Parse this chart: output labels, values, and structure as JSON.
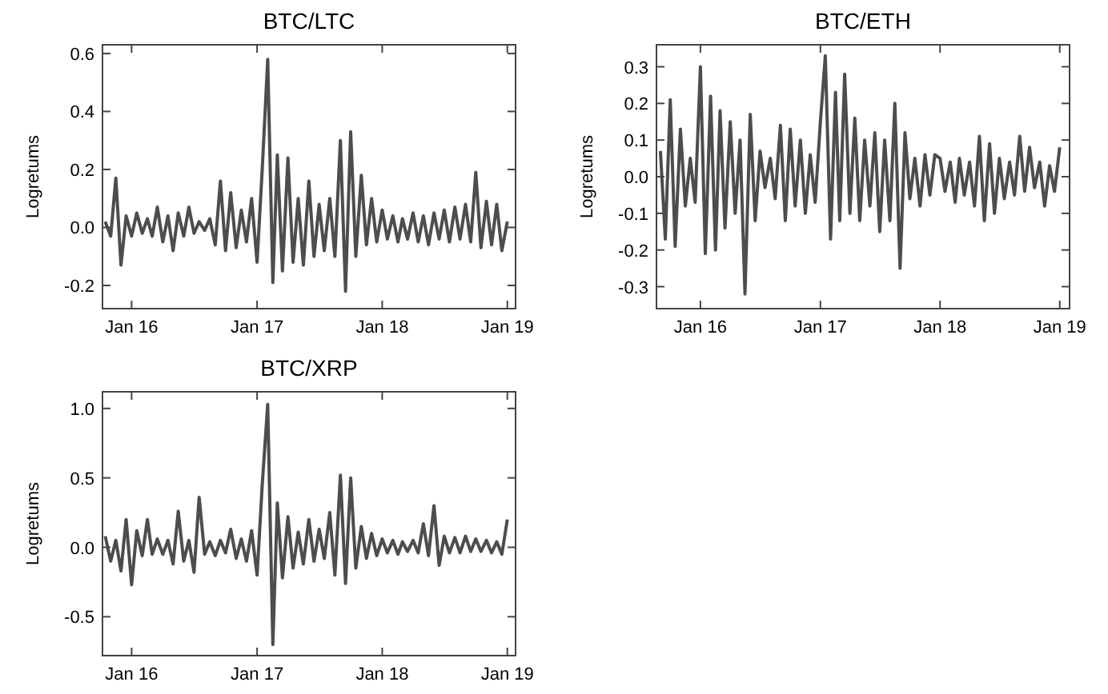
{
  "chart_data": [
    {
      "type": "line",
      "title": "BTC/LTC",
      "ylabel": "Logretums",
      "x": [
        "2015-10-16",
        "2015-11-01",
        "2015-11-16",
        "2015-12-01",
        "2015-12-16",
        "2016-01-01",
        "2016-01-16",
        "2016-02-01",
        "2016-02-16",
        "2016-03-01",
        "2016-03-16",
        "2016-04-01",
        "2016-04-16",
        "2016-05-01",
        "2016-05-16",
        "2016-06-01",
        "2016-06-16",
        "2016-07-01",
        "2016-07-16",
        "2016-08-01",
        "2016-08-16",
        "2016-09-01",
        "2016-09-16",
        "2016-10-01",
        "2016-10-16",
        "2016-11-01",
        "2016-11-16",
        "2016-12-01",
        "2016-12-16",
        "2017-01-01",
        "2017-01-16",
        "2017-02-01",
        "2017-02-16",
        "2017-03-01",
        "2017-03-16",
        "2017-04-01",
        "2017-04-16",
        "2017-05-01",
        "2017-05-16",
        "2017-06-01",
        "2017-06-16",
        "2017-07-01",
        "2017-07-16",
        "2017-08-01",
        "2017-08-16",
        "2017-09-01",
        "2017-09-16",
        "2017-10-01",
        "2017-10-16",
        "2017-11-01",
        "2017-11-16",
        "2017-12-01",
        "2017-12-16",
        "2018-01-01",
        "2018-01-16",
        "2018-02-01",
        "2018-02-16",
        "2018-03-01",
        "2018-03-16",
        "2018-04-01",
        "2018-04-16",
        "2018-05-01",
        "2018-05-16",
        "2018-06-01",
        "2018-06-16",
        "2018-07-01",
        "2018-07-16",
        "2018-08-01",
        "2018-08-16",
        "2018-09-01",
        "2018-09-16",
        "2018-10-01",
        "2018-10-16",
        "2018-11-01",
        "2018-11-16",
        "2018-12-01",
        "2018-12-16",
        "2019-01-01"
      ],
      "series": [
        {
          "color": "#4d4d4d",
          "values": [
            0.02,
            -0.03,
            0.17,
            -0.13,
            0.04,
            -0.03,
            0.05,
            -0.02,
            0.03,
            -0.03,
            0.07,
            -0.05,
            0.04,
            -0.08,
            0.05,
            -0.03,
            0.07,
            -0.02,
            0.02,
            -0.01,
            0.03,
            -0.06,
            0.16,
            -0.08,
            0.12,
            -0.07,
            0.06,
            -0.05,
            0.1,
            -0.12,
            0.2,
            0.58,
            -0.19,
            0.25,
            -0.15,
            0.24,
            -0.12,
            0.1,
            -0.13,
            0.16,
            -0.1,
            0.08,
            -0.08,
            0.1,
            -0.1,
            0.3,
            -0.22,
            0.33,
            -0.1,
            0.18,
            -0.06,
            0.1,
            -0.05,
            0.06,
            -0.04,
            0.04,
            -0.05,
            0.03,
            -0.04,
            0.05,
            -0.05,
            0.04,
            -0.06,
            0.05,
            -0.04,
            0.06,
            -0.05,
            0.07,
            -0.04,
            0.08,
            -0.05,
            0.19,
            -0.07,
            0.09,
            -0.06,
            0.08,
            -0.08,
            0.02
          ]
        }
      ],
      "xlim": [
        "2015-10-08",
        "2019-01-25"
      ],
      "xticks": [
        {
          "value": "2016-01-01",
          "label": "Jan 16"
        },
        {
          "value": "2017-01-01",
          "label": "Jan 17"
        },
        {
          "value": "2018-01-01",
          "label": "Jan 18"
        },
        {
          "value": "2019-01-01",
          "label": "Jan 19"
        }
      ],
      "ylim": [
        -0.28,
        0.63
      ],
      "yticks": [
        {
          "value": -0.2,
          "label": "-0.2"
        },
        {
          "value": 0,
          "label": "0.0"
        },
        {
          "value": 0.2,
          "label": "0.2"
        },
        {
          "value": 0.4,
          "label": "0.4"
        },
        {
          "value": 0.6,
          "label": "0.6"
        }
      ],
      "grid": false,
      "marker": "none",
      "line_style": "solid"
    },
    {
      "type": "line",
      "title": "BTC/ETH",
      "ylabel": "Logretums",
      "x": [
        "2015-09-01",
        "2015-09-16",
        "2015-10-01",
        "2015-10-16",
        "2015-11-01",
        "2015-11-16",
        "2015-12-01",
        "2015-12-16",
        "2016-01-01",
        "2016-01-16",
        "2016-02-01",
        "2016-02-16",
        "2016-03-01",
        "2016-03-16",
        "2016-04-01",
        "2016-04-16",
        "2016-05-01",
        "2016-05-16",
        "2016-06-01",
        "2016-06-16",
        "2016-07-01",
        "2016-07-16",
        "2016-08-01",
        "2016-08-16",
        "2016-09-01",
        "2016-09-16",
        "2016-10-01",
        "2016-10-16",
        "2016-11-01",
        "2016-11-16",
        "2016-12-01",
        "2016-12-16",
        "2017-01-01",
        "2017-01-16",
        "2017-02-01",
        "2017-02-16",
        "2017-03-01",
        "2017-03-16",
        "2017-04-01",
        "2017-04-16",
        "2017-05-01",
        "2017-05-16",
        "2017-06-01",
        "2017-06-16",
        "2017-07-01",
        "2017-07-16",
        "2017-08-01",
        "2017-08-16",
        "2017-09-01",
        "2017-09-16",
        "2017-10-01",
        "2017-10-16",
        "2017-11-01",
        "2017-11-16",
        "2017-12-01",
        "2017-12-16",
        "2018-01-01",
        "2018-01-16",
        "2018-02-01",
        "2018-02-16",
        "2018-03-01",
        "2018-03-16",
        "2018-04-01",
        "2018-04-16",
        "2018-05-01",
        "2018-05-16",
        "2018-06-01",
        "2018-06-16",
        "2018-07-01",
        "2018-07-16",
        "2018-08-01",
        "2018-08-16",
        "2018-09-01",
        "2018-09-16",
        "2018-10-01",
        "2018-10-16",
        "2018-11-01",
        "2018-11-16",
        "2018-12-01",
        "2018-12-16",
        "2019-01-01"
      ],
      "series": [
        {
          "color": "#4d4d4d",
          "values": [
            0.07,
            -0.17,
            0.21,
            -0.19,
            0.13,
            -0.08,
            0.05,
            -0.07,
            0.3,
            -0.21,
            0.22,
            -0.2,
            0.18,
            -0.14,
            0.15,
            -0.1,
            0.1,
            -0.32,
            0.17,
            -0.12,
            0.07,
            -0.03,
            0.05,
            -0.06,
            0.14,
            -0.12,
            0.13,
            -0.08,
            0.1,
            -0.1,
            0.06,
            -0.07,
            0.15,
            0.33,
            -0.17,
            0.23,
            -0.12,
            0.28,
            -0.1,
            0.16,
            -0.12,
            0.1,
            -0.08,
            0.12,
            -0.15,
            0.1,
            -0.12,
            0.2,
            -0.25,
            0.12,
            -0.06,
            0.05,
            -0.08,
            0.06,
            -0.05,
            0.06,
            0.05,
            -0.04,
            0.04,
            -0.07,
            0.05,
            -0.05,
            0.04,
            -0.08,
            0.11,
            -0.12,
            0.09,
            -0.1,
            0.05,
            -0.06,
            0.04,
            -0.05,
            0.11,
            -0.04,
            0.08,
            -0.03,
            0.04,
            -0.08,
            0.03,
            -0.04,
            0.08
          ]
        }
      ],
      "xlim": [
        "2015-08-20",
        "2019-01-31"
      ],
      "xticks": [
        {
          "value": "2016-01-01",
          "label": "Jan 16"
        },
        {
          "value": "2017-01-01",
          "label": "Jan 17"
        },
        {
          "value": "2018-01-01",
          "label": "Jan 18"
        },
        {
          "value": "2019-01-01",
          "label": "Jan 19"
        }
      ],
      "ylim": [
        -0.36,
        0.36
      ],
      "yticks": [
        {
          "value": -0.3,
          "label": "-0.3"
        },
        {
          "value": -0.2,
          "label": "-0.2"
        },
        {
          "value": -0.1,
          "label": "-0.1"
        },
        {
          "value": 0,
          "label": "0.0"
        },
        {
          "value": 0.1,
          "label": "0.1"
        },
        {
          "value": 0.2,
          "label": "0.2"
        },
        {
          "value": 0.3,
          "label": "0.3"
        }
      ],
      "grid": false,
      "marker": "none",
      "line_style": "solid"
    },
    {
      "type": "line",
      "title": "BTC/XRP",
      "ylabel": "Logretums",
      "x": [
        "2015-10-16",
        "2015-11-01",
        "2015-11-16",
        "2015-12-01",
        "2015-12-16",
        "2016-01-01",
        "2016-01-16",
        "2016-02-01",
        "2016-02-16",
        "2016-03-01",
        "2016-03-16",
        "2016-04-01",
        "2016-04-16",
        "2016-05-01",
        "2016-05-16",
        "2016-06-01",
        "2016-06-16",
        "2016-07-01",
        "2016-07-16",
        "2016-08-01",
        "2016-08-16",
        "2016-09-01",
        "2016-09-16",
        "2016-10-01",
        "2016-10-16",
        "2016-11-01",
        "2016-11-16",
        "2016-12-01",
        "2016-12-16",
        "2017-01-01",
        "2017-01-16",
        "2017-02-01",
        "2017-02-16",
        "2017-03-01",
        "2017-03-16",
        "2017-04-01",
        "2017-04-16",
        "2017-05-01",
        "2017-05-16",
        "2017-06-01",
        "2017-06-16",
        "2017-07-01",
        "2017-07-16",
        "2017-08-01",
        "2017-08-16",
        "2017-09-01",
        "2017-09-16",
        "2017-10-01",
        "2017-10-16",
        "2017-11-01",
        "2017-11-16",
        "2017-12-01",
        "2017-12-16",
        "2018-01-01",
        "2018-01-16",
        "2018-02-01",
        "2018-02-16",
        "2018-03-01",
        "2018-03-16",
        "2018-04-01",
        "2018-04-16",
        "2018-05-01",
        "2018-05-16",
        "2018-06-01",
        "2018-06-16",
        "2018-07-01",
        "2018-07-16",
        "2018-08-01",
        "2018-08-16",
        "2018-09-01",
        "2018-09-16",
        "2018-10-01",
        "2018-10-16",
        "2018-11-01",
        "2018-11-16",
        "2018-12-01",
        "2018-12-16",
        "2019-01-01"
      ],
      "series": [
        {
          "color": "#4d4d4d",
          "values": [
            0.08,
            -0.1,
            0.05,
            -0.17,
            0.2,
            -0.27,
            0.12,
            -0.06,
            0.2,
            -0.05,
            0.06,
            -0.05,
            0.05,
            -0.12,
            0.26,
            -0.1,
            0.05,
            -0.18,
            0.36,
            -0.05,
            0.04,
            -0.06,
            0.05,
            -0.04,
            0.13,
            -0.08,
            0.06,
            -0.1,
            0.12,
            -0.2,
            0.45,
            1.03,
            -0.7,
            0.32,
            -0.22,
            0.22,
            -0.15,
            0.11,
            -0.12,
            0.2,
            -0.1,
            0.13,
            -0.08,
            0.25,
            -0.2,
            0.52,
            -0.26,
            0.5,
            -0.15,
            0.15,
            -0.08,
            0.1,
            -0.06,
            0.06,
            -0.04,
            0.05,
            -0.05,
            0.04,
            -0.03,
            0.05,
            -0.04,
            0.17,
            -0.06,
            0.3,
            -0.13,
            0.08,
            -0.04,
            0.07,
            -0.04,
            0.08,
            -0.03,
            0.06,
            -0.03,
            0.05,
            -0.04,
            0.04,
            -0.05,
            0.2
          ]
        }
      ],
      "xlim": [
        "2015-10-08",
        "2019-01-25"
      ],
      "xticks": [
        {
          "value": "2016-01-01",
          "label": "Jan 16"
        },
        {
          "value": "2017-01-01",
          "label": "Jan 17"
        },
        {
          "value": "2018-01-01",
          "label": "Jan 18"
        },
        {
          "value": "2019-01-01",
          "label": "Jan 19"
        }
      ],
      "ylim": [
        -0.78,
        1.12
      ],
      "yticks": [
        {
          "value": -0.5,
          "label": "-0.5"
        },
        {
          "value": 0,
          "label": "0.0"
        },
        {
          "value": 0.5,
          "label": "0.5"
        },
        {
          "value": 1,
          "label": "1.0"
        }
      ],
      "grid": false,
      "marker": "none",
      "line_style": "solid"
    }
  ]
}
